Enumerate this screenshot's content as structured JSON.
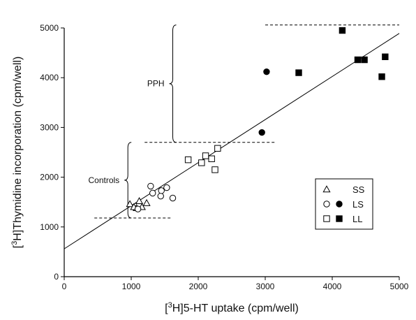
{
  "chart_data": {
    "type": "scatter",
    "x_axis": {
      "range": [
        0,
        5000
      ],
      "ticks": [
        0,
        1000,
        2000,
        3000,
        4000,
        5000
      ],
      "tick_labels": [
        "0",
        "1000",
        "2000",
        "3000",
        "4000",
        "5000"
      ],
      "label_sup": "3",
      "label_main": "H]5-HT uptake (cpm/well)"
    },
    "y_axis": {
      "range": [
        0,
        5000
      ],
      "ticks": [
        0,
        1000,
        2000,
        3000,
        4000,
        5000
      ],
      "tick_labels": [
        "0",
        "1000",
        "2000",
        "3000",
        "4000",
        "5000"
      ],
      "label_sup": "3",
      "label_main": "H]Thymidine incorporation (cpm/well)"
    },
    "grid": false,
    "series": [
      {
        "name": "SS",
        "marker": "triangle-open",
        "points": [
          [
            980,
            1460
          ],
          [
            1080,
            1380
          ],
          [
            1120,
            1520
          ],
          [
            1160,
            1400
          ],
          [
            1230,
            1480
          ],
          [
            1040,
            1400
          ]
        ]
      },
      {
        "name": "LS",
        "marker": "circle-open",
        "points": [
          [
            1100,
            1360
          ],
          [
            1290,
            1820
          ],
          [
            1320,
            1680
          ],
          [
            1440,
            1620
          ],
          [
            1450,
            1730
          ],
          [
            1530,
            1790
          ],
          [
            1620,
            1580
          ]
        ]
      },
      {
        "name": "LS",
        "marker": "circle-filled",
        "points": [
          [
            3020,
            4120
          ],
          [
            2950,
            2900
          ]
        ]
      },
      {
        "name": "LL",
        "marker": "square-open",
        "points": [
          [
            1850,
            2350
          ],
          [
            2050,
            2290
          ],
          [
            2110,
            2430
          ],
          [
            2200,
            2370
          ],
          [
            2250,
            2150
          ],
          [
            2290,
            2580
          ]
        ]
      },
      {
        "name": "LL",
        "marker": "square-filled",
        "points": [
          [
            3500,
            4100
          ],
          [
            4150,
            4950
          ],
          [
            4380,
            4360
          ],
          [
            4480,
            4360
          ],
          [
            4740,
            4020
          ],
          [
            4790,
            4420
          ]
        ]
      }
    ],
    "regression_line": {
      "x": [
        0,
        5000
      ],
      "y": [
        560,
        4890
      ]
    },
    "reference_lines": [
      {
        "y": 5060,
        "x_start": 3000,
        "x_end": 5000
      },
      {
        "y": 2700,
        "x_start": 1200,
        "x_end": 3150
      },
      {
        "y": 1180,
        "x_start": 450,
        "x_end": 1600
      }
    ],
    "brackets": [
      {
        "label": "PPH",
        "x": 1620,
        "y_top": 5060,
        "y_bottom": 2700
      },
      {
        "label": "Controls",
        "x": 950,
        "y_top": 2700,
        "y_bottom": 1180
      }
    ],
    "legend": {
      "placement": "bottom-right",
      "rows": [
        {
          "label": "SS",
          "markers": [
            "triangle-open"
          ]
        },
        {
          "label": "LS",
          "markers": [
            "circle-open",
            "circle-filled"
          ]
        },
        {
          "label": "LL",
          "markers": [
            "square-open",
            "square-filled"
          ]
        }
      ]
    }
  }
}
